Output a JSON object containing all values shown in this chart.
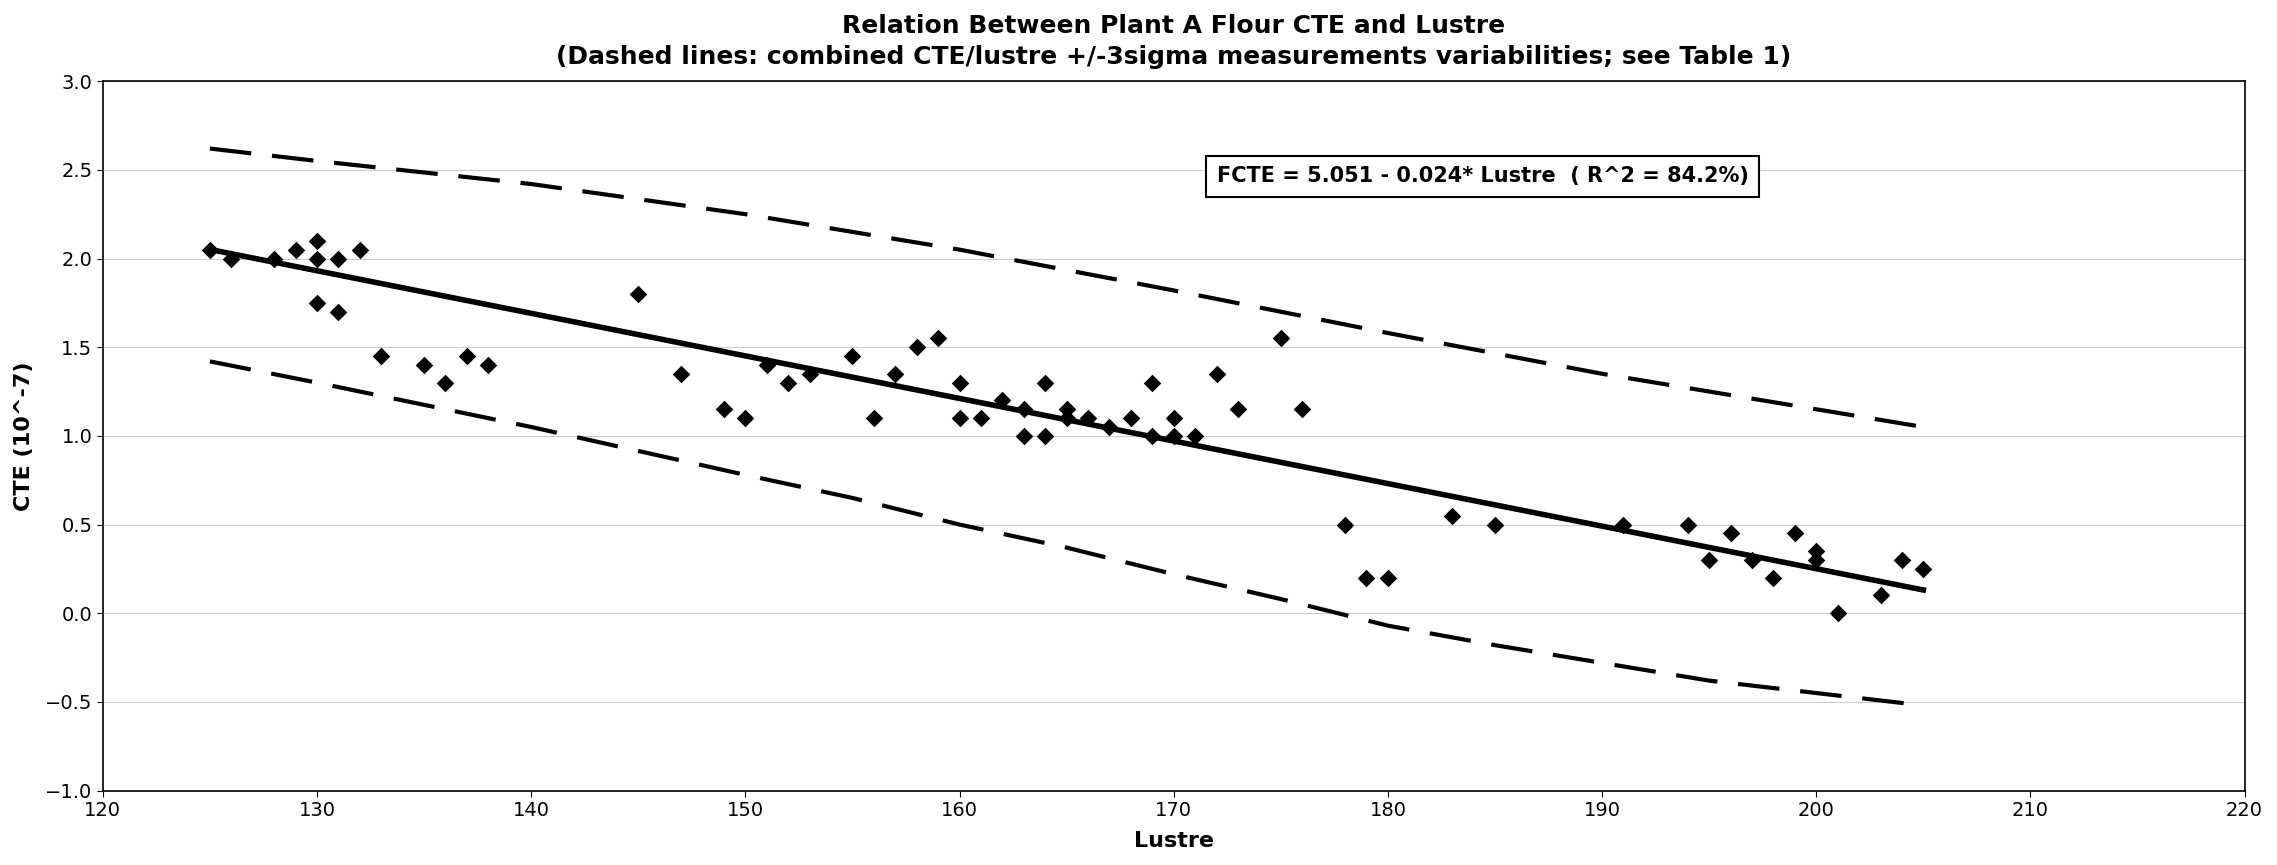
{
  "title": "Relation Between Plant A Flour CTE and Lustre",
  "subtitle": "(Dashed lines: combined CTE/lustre +/-3sigma measurements variabilities; see Table 1)",
  "xlabel": "Lustre",
  "ylabel": "CTE (10^-7)",
  "xlim": [
    120,
    220
  ],
  "ylim": [
    -1,
    3
  ],
  "yticks": [
    -1,
    -0.5,
    0,
    0.5,
    1,
    1.5,
    2,
    2.5,
    3
  ],
  "xticks": [
    120,
    130,
    140,
    150,
    160,
    170,
    180,
    190,
    200,
    210,
    220
  ],
  "regression_intercept": 5.051,
  "regression_slope": -0.024,
  "regression_x_start": 125,
  "regression_x_end": 205,
  "equation_text": "FCTE = 5.051 - 0.024* Lustre  ( R^2 = 84.2%)",
  "scatter_x": [
    125,
    126,
    128,
    129,
    130,
    130,
    130,
    131,
    131,
    132,
    133,
    135,
    136,
    137,
    138,
    145,
    147,
    149,
    150,
    151,
    152,
    153,
    155,
    156,
    157,
    158,
    159,
    160,
    160,
    161,
    162,
    163,
    163,
    164,
    164,
    165,
    165,
    166,
    167,
    168,
    169,
    169,
    170,
    170,
    171,
    172,
    173,
    175,
    176,
    178,
    179,
    180,
    183,
    185,
    191,
    194,
    195,
    196,
    197,
    198,
    199,
    200,
    200,
    201,
    203,
    204,
    205
  ],
  "scatter_y": [
    2.05,
    2.0,
    2.0,
    2.05,
    2.0,
    2.1,
    1.75,
    2.0,
    1.7,
    2.05,
    1.45,
    1.4,
    1.3,
    1.45,
    1.4,
    1.8,
    1.35,
    1.15,
    1.1,
    1.4,
    1.3,
    1.35,
    1.45,
    1.1,
    1.35,
    1.5,
    1.55,
    1.3,
    1.1,
    1.1,
    1.2,
    1.15,
    1.0,
    1.3,
    1.0,
    1.1,
    1.15,
    1.1,
    1.05,
    1.1,
    1.0,
    1.3,
    1.1,
    1.0,
    1.0,
    1.35,
    1.15,
    1.55,
    1.15,
    0.5,
    0.2,
    0.2,
    0.55,
    0.5,
    0.5,
    0.5,
    0.3,
    0.45,
    0.3,
    0.2,
    0.45,
    0.35,
    0.3,
    0.0,
    0.1,
    0.3,
    0.25
  ],
  "upper_band_x": [
    125,
    130,
    140,
    150,
    160,
    170,
    180,
    190,
    200,
    205
  ],
  "upper_band_y": [
    2.62,
    2.55,
    2.42,
    2.25,
    2.05,
    1.82,
    1.58,
    1.35,
    1.15,
    1.05
  ],
  "lower_band_x": [
    125,
    130,
    140,
    150,
    155,
    160,
    165,
    170,
    175,
    180,
    185,
    190,
    195,
    200,
    205
  ],
  "lower_band_y": [
    1.42,
    1.3,
    1.05,
    0.78,
    0.65,
    0.5,
    0.37,
    0.22,
    0.08,
    -0.07,
    -0.18,
    -0.28,
    -0.38,
    -0.45,
    -0.52
  ],
  "scatter_color": "#000000",
  "line_color": "#000000",
  "dashed_color": "#000000",
  "background_color": "#ffffff",
  "title_fontsize": 18,
  "subtitle_fontsize": 15,
  "axis_label_fontsize": 16,
  "tick_fontsize": 14,
  "equation_fontsize": 15
}
